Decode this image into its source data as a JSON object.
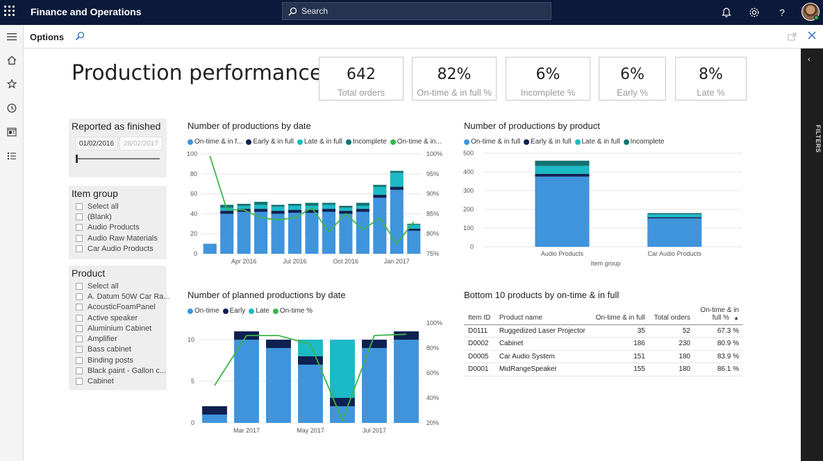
{
  "app": {
    "title": "Finance and Operations",
    "search_placeholder": "Search"
  },
  "options_bar": {
    "label": "Options"
  },
  "filters_pane": {
    "label": "FILTERS"
  },
  "report": {
    "title": "Production performance",
    "kpis": [
      {
        "value": "642",
        "label": "Total orders"
      },
      {
        "value": "82%",
        "label": "On-time & in full %"
      },
      {
        "value": "6%",
        "label": "Incomplete %"
      },
      {
        "value": "6%",
        "label": "Early %"
      },
      {
        "value": "8%",
        "label": "Late %"
      }
    ]
  },
  "slicers": {
    "reported": {
      "title": "Reported as finished",
      "start": "01/02/2016",
      "end": "28/02/2017"
    },
    "item_group": {
      "title": "Item group",
      "items": [
        "Select all",
        "(Blank)",
        "Audio Products",
        "Audio Raw Materials",
        "Car Audio Products"
      ]
    },
    "product": {
      "title": "Product",
      "items": [
        "Select all",
        "A. Datum 50W Car Ra...",
        "AcousticFoamPanel",
        "Active speaker",
        "Aluminium Cabinet",
        "Amplifier",
        "Bass cabinet",
        "Binding posts",
        "Black paint - Gallon c...",
        "Cabinet"
      ]
    }
  },
  "colors": {
    "on_time": "#3f94dc",
    "early": "#0f2051",
    "late": "#1cb9c6",
    "incomplete": "#137272",
    "line": "#3bb54a"
  },
  "icons": {
    "top": [
      "waffle-icon",
      "search-icon",
      "bell-icon",
      "gear-icon",
      "help-icon"
    ],
    "nav": [
      "hamburger-icon",
      "home-icon",
      "star-icon",
      "clock-icon",
      "workspace-icon",
      "list-icon"
    ]
  },
  "chart_data": [
    {
      "title": "Number of productions by date",
      "type": "bar",
      "stacked": true,
      "legend": [
        "On-time & in f...",
        "Early & in full",
        "Late & in full",
        "Incomplete",
        "On-time & in..."
      ],
      "x_ticks": [
        {
          "label": "Apr 2016",
          "index": 2
        },
        {
          "label": "Jul 2016",
          "index": 5
        },
        {
          "label": "Oct 2016",
          "index": 8
        },
        {
          "label": "Jan 2017",
          "index": 11
        }
      ],
      "ylim": [
        0,
        100
      ],
      "y_ticks": [
        0,
        20,
        40,
        60,
        80,
        100
      ],
      "y2lim": [
        75,
        100
      ],
      "y2_ticks": [
        "75%",
        "80%",
        "85%",
        "90%",
        "95%",
        "100%"
      ],
      "series": [
        {
          "name": "On-time & in f...",
          "values": [
            10,
            40,
            42,
            42,
            40,
            41,
            41,
            42,
            40,
            42,
            56,
            64,
            23
          ]
        },
        {
          "name": "Early & in full",
          "values": [
            0,
            3,
            3,
            3,
            3,
            3,
            3,
            3,
            3,
            3,
            3,
            3,
            2
          ]
        },
        {
          "name": "Late & in full",
          "values": [
            0,
            3,
            3,
            4,
            4,
            4,
            4,
            4,
            3,
            3,
            8,
            14,
            4
          ]
        },
        {
          "name": "Incomplete",
          "values": [
            0,
            3,
            2,
            3,
            2,
            2,
            3,
            2,
            2,
            3,
            2,
            2,
            1
          ]
        },
        {
          "name": "On-time & in...",
          "axis": "right",
          "values": [
            99.5,
            86,
            86,
            84,
            83.5,
            84,
            86.5,
            80.5,
            85,
            81,
            84,
            77.5,
            83
          ]
        }
      ]
    },
    {
      "title": "Number of productions by product",
      "type": "bar",
      "stacked": true,
      "legend": [
        "On-time & in full",
        "Early & in full",
        "Late & in full",
        "Incomplete"
      ],
      "xlabel": "Item group",
      "categories": [
        "Audio Products",
        "Car Audio Products"
      ],
      "ylim": [
        0,
        500
      ],
      "y_ticks": [
        0,
        100,
        200,
        300,
        400,
        500
      ],
      "series": [
        {
          "name": "On-time & in full",
          "values": [
            375,
            152
          ]
        },
        {
          "name": "Early & in full",
          "values": [
            15,
            6
          ]
        },
        {
          "name": "Late & in full",
          "values": [
            42,
            15
          ]
        },
        {
          "name": "Incomplete",
          "values": [
            28,
            7
          ]
        }
      ]
    },
    {
      "title": "Number of planned productions by date",
      "type": "bar",
      "stacked": true,
      "legend": [
        "On-time",
        "Early",
        "Late",
        "On-time %"
      ],
      "x_ticks": [
        {
          "label": "Mar 2017",
          "index": 1
        },
        {
          "label": "May 2017",
          "index": 3
        },
        {
          "label": "Jul 2017",
          "index": 5
        }
      ],
      "ylim": [
        0,
        12
      ],
      "y_ticks": [
        0,
        5,
        10
      ],
      "y2lim": [
        20,
        100
      ],
      "y2_ticks": [
        "20%",
        "40%",
        "60%",
        "80%",
        "100%"
      ],
      "series": [
        {
          "name": "On-time",
          "values": [
            1,
            10,
            9,
            7,
            2,
            9,
            10
          ]
        },
        {
          "name": "Early",
          "values": [
            1,
            1,
            1,
            1,
            1,
            1,
            1
          ]
        },
        {
          "name": "Late",
          "values": [
            0,
            0,
            0,
            2,
            7,
            0,
            0
          ]
        },
        {
          "name": "On-time %",
          "axis": "right",
          "values": [
            50,
            90,
            90,
            83,
            22,
            90,
            91
          ]
        }
      ]
    },
    {
      "title": "Bottom 10 products by on-time & in full",
      "type": "table",
      "columns": [
        "Item ID",
        "Product name",
        "On-time & in full",
        "Total orders",
        "On-time & in full %"
      ],
      "rows": [
        [
          "D0111",
          "Ruggedized Laser Projector",
          "35",
          "52",
          "67.3 %"
        ],
        [
          "D0002",
          "Cabinet",
          "186",
          "230",
          "80.9 %"
        ],
        [
          "D0005",
          "Car Audio System",
          "151",
          "180",
          "83.9 %"
        ],
        [
          "D0001",
          "MidRangeSpeaker",
          "155",
          "180",
          "86.1 %"
        ]
      ]
    }
  ]
}
